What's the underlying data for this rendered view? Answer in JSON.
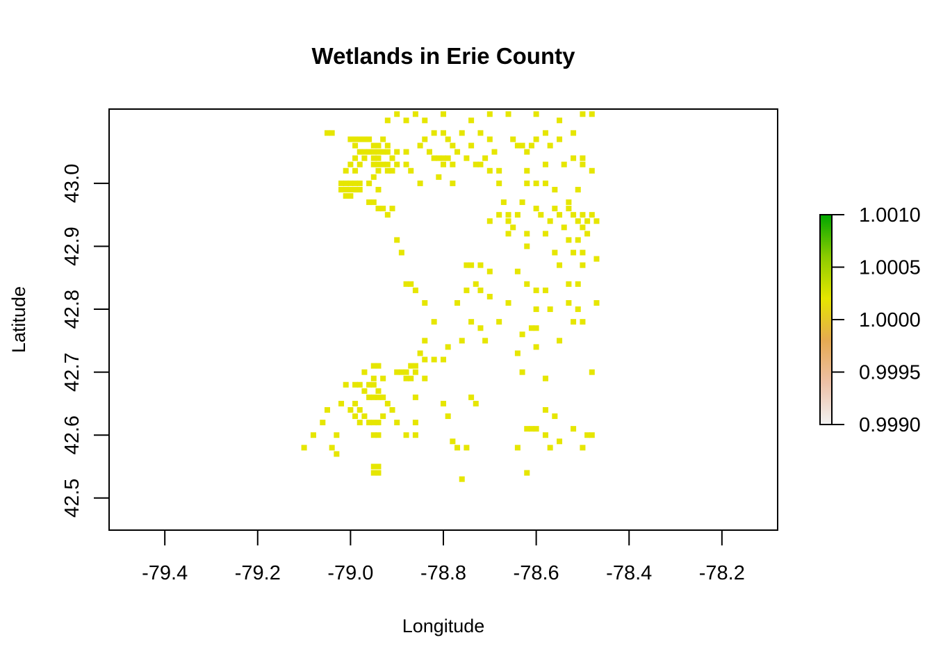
{
  "chart_data": {
    "type": "heatmap",
    "title": "Wetlands in Erie County",
    "xlabel": "Longitude",
    "ylabel": "Latitude",
    "xlim": [
      -79.52,
      -78.08
    ],
    "ylim": [
      42.449,
      43.118
    ],
    "x_ticks": [
      -79.4,
      -79.2,
      -79.0,
      -78.8,
      -78.6,
      -78.4,
      -78.2
    ],
    "x_tick_labels": [
      "-79.4",
      "-79.2",
      "-79.0",
      "-78.8",
      "-78.6",
      "-78.4",
      "-78.2"
    ],
    "y_ticks": [
      42.5,
      42.6,
      42.7,
      42.8,
      42.9,
      43.0
    ],
    "y_tick_labels": [
      "42.5",
      "42.6",
      "42.7",
      "42.8",
      "42.9",
      "43.0"
    ],
    "grid": false,
    "legend": {
      "placement": "right",
      "type": "colorbar",
      "range": [
        0.999,
        1.001
      ],
      "ticks": [
        0.999,
        0.9995,
        1.0,
        1.0005,
        1.001
      ],
      "tick_labels": [
        "0.9990",
        "0.9995",
        "1.0000",
        "1.0005",
        "1.0010"
      ],
      "colors": [
        "#f2f2f2",
        "#eec0a6",
        "#e6aa52",
        "#e6e600",
        "#8ccc00",
        "#00a600"
      ]
    },
    "cell_value": 1.0,
    "cell_color": "#e6e600",
    "cell_size_deg": [
      0.012,
      0.00885
    ],
    "cells": [
      [
        -79.05,
        43.08
      ],
      [
        -79.04,
        43.08
      ],
      [
        -78.92,
        43.1
      ],
      [
        -78.9,
        43.11
      ],
      [
        -78.88,
        43.1
      ],
      [
        -78.86,
        43.11
      ],
      [
        -78.84,
        43.1
      ],
      [
        -78.8,
        43.11
      ],
      [
        -78.74,
        43.1
      ],
      [
        -78.7,
        43.11
      ],
      [
        -78.66,
        43.11
      ],
      [
        -78.6,
        43.11
      ],
      [
        -78.55,
        43.1
      ],
      [
        -78.5,
        43.11
      ],
      [
        -78.48,
        43.11
      ],
      [
        -79.0,
        43.07
      ],
      [
        -78.99,
        43.07
      ],
      [
        -78.98,
        43.07
      ],
      [
        -78.97,
        43.07
      ],
      [
        -78.96,
        43.07
      ],
      [
        -78.95,
        43.06
      ],
      [
        -78.94,
        43.06
      ],
      [
        -78.93,
        43.07
      ],
      [
        -78.92,
        43.06
      ],
      [
        -78.99,
        43.06
      ],
      [
        -78.98,
        43.05
      ],
      [
        -78.97,
        43.05
      ],
      [
        -78.96,
        43.05
      ],
      [
        -78.95,
        43.05
      ],
      [
        -78.94,
        43.05
      ],
      [
        -78.93,
        43.05
      ],
      [
        -78.92,
        43.05
      ],
      [
        -78.99,
        43.04
      ],
      [
        -78.97,
        43.04
      ],
      [
        -78.95,
        43.04
      ],
      [
        -78.94,
        43.04
      ],
      [
        -78.91,
        43.04
      ],
      [
        -78.9,
        43.05
      ],
      [
        -78.88,
        43.05
      ],
      [
        -79.0,
        43.03
      ],
      [
        -78.98,
        43.03
      ],
      [
        -78.95,
        43.03
      ],
      [
        -78.94,
        43.03
      ],
      [
        -78.93,
        43.03
      ],
      [
        -78.92,
        43.03
      ],
      [
        -78.9,
        43.03
      ],
      [
        -79.01,
        43.02
      ],
      [
        -78.99,
        43.02
      ],
      [
        -78.94,
        43.02
      ],
      [
        -78.92,
        43.02
      ],
      [
        -78.91,
        43.02
      ],
      [
        -78.88,
        43.03
      ],
      [
        -78.87,
        43.02
      ],
      [
        -78.85,
        43.06
      ],
      [
        -78.84,
        43.07
      ],
      [
        -78.82,
        43.08
      ],
      [
        -78.8,
        43.08
      ],
      [
        -78.79,
        43.07
      ],
      [
        -78.78,
        43.06
      ],
      [
        -78.76,
        43.08
      ],
      [
        -78.74,
        43.06
      ],
      [
        -78.72,
        43.08
      ],
      [
        -78.7,
        43.07
      ],
      [
        -78.69,
        43.05
      ],
      [
        -78.71,
        43.04
      ],
      [
        -78.83,
        43.05
      ],
      [
        -78.82,
        43.04
      ],
      [
        -78.81,
        43.04
      ],
      [
        -78.8,
        43.04
      ],
      [
        -78.79,
        43.04
      ],
      [
        -78.78,
        43.03
      ],
      [
        -78.8,
        43.03
      ],
      [
        -78.77,
        43.05
      ],
      [
        -78.75,
        43.04
      ],
      [
        -78.73,
        43.03
      ],
      [
        -78.72,
        43.03
      ],
      [
        -78.7,
        43.02
      ],
      [
        -78.65,
        43.07
      ],
      [
        -78.64,
        43.06
      ],
      [
        -78.63,
        43.06
      ],
      [
        -78.62,
        43.05
      ],
      [
        -78.61,
        43.06
      ],
      [
        -78.6,
        43.07
      ],
      [
        -78.58,
        43.08
      ],
      [
        -78.57,
        43.06
      ],
      [
        -78.55,
        43.07
      ],
      [
        -78.52,
        43.08
      ],
      [
        -78.5,
        43.04
      ],
      [
        -78.68,
        43.02
      ],
      [
        -78.62,
        43.02
      ],
      [
        -78.58,
        43.03
      ],
      [
        -78.54,
        43.03
      ],
      [
        -78.52,
        43.04
      ],
      [
        -78.5,
        43.03
      ],
      [
        -78.48,
        43.02
      ],
      [
        -79.02,
        43.0
      ],
      [
        -79.01,
        43.0
      ],
      [
        -79.0,
        43.0
      ],
      [
        -78.99,
        43.0
      ],
      [
        -78.98,
        43.0
      ],
      [
        -79.02,
        42.99
      ],
      [
        -79.01,
        42.99
      ],
      [
        -79.0,
        42.99
      ],
      [
        -78.99,
        42.99
      ],
      [
        -78.98,
        42.99
      ],
      [
        -79.01,
        42.98
      ],
      [
        -79.0,
        42.98
      ],
      [
        -78.96,
        43.0
      ],
      [
        -78.95,
        43.01
      ],
      [
        -78.94,
        42.99
      ],
      [
        -78.96,
        42.97
      ],
      [
        -78.95,
        42.97
      ],
      [
        -78.94,
        42.96
      ],
      [
        -78.93,
        42.96
      ],
      [
        -78.91,
        42.96
      ],
      [
        -78.92,
        42.95
      ],
      [
        -78.85,
        43.0
      ],
      [
        -78.81,
        43.01
      ],
      [
        -78.78,
        43.0
      ],
      [
        -78.68,
        43.0
      ],
      [
        -78.62,
        43.0
      ],
      [
        -78.6,
        43.0
      ],
      [
        -78.58,
        43.0
      ],
      [
        -78.56,
        42.99
      ],
      [
        -78.53,
        42.97
      ],
      [
        -78.51,
        42.99
      ],
      [
        -78.67,
        42.97
      ],
      [
        -78.66,
        42.95
      ],
      [
        -78.65,
        42.93
      ],
      [
        -78.64,
        42.95
      ],
      [
        -78.66,
        42.94
      ],
      [
        -78.63,
        42.97
      ],
      [
        -78.6,
        42.96
      ],
      [
        -78.59,
        42.95
      ],
      [
        -78.57,
        42.94
      ],
      [
        -78.56,
        42.96
      ],
      [
        -78.55,
        42.95
      ],
      [
        -78.53,
        42.96
      ],
      [
        -78.52,
        42.95
      ],
      [
        -78.51,
        42.94
      ],
      [
        -78.5,
        42.95
      ],
      [
        -78.5,
        42.93
      ],
      [
        -78.49,
        42.94
      ],
      [
        -78.48,
        42.95
      ],
      [
        -78.47,
        42.94
      ],
      [
        -78.66,
        42.92
      ],
      [
        -78.62,
        42.92
      ],
      [
        -78.58,
        42.92
      ],
      [
        -78.54,
        42.93
      ],
      [
        -78.53,
        42.91
      ],
      [
        -78.51,
        42.91
      ],
      [
        -78.49,
        42.92
      ],
      [
        -78.68,
        42.95
      ],
      [
        -78.7,
        42.94
      ],
      [
        -78.9,
        42.91
      ],
      [
        -78.89,
        42.89
      ],
      [
        -78.62,
        42.9
      ],
      [
        -78.56,
        42.89
      ],
      [
        -78.52,
        42.89
      ],
      [
        -78.5,
        42.89
      ],
      [
        -78.75,
        42.87
      ],
      [
        -78.74,
        42.87
      ],
      [
        -78.72,
        42.87
      ],
      [
        -78.7,
        42.86
      ],
      [
        -78.64,
        42.86
      ],
      [
        -78.55,
        42.87
      ],
      [
        -78.5,
        42.87
      ],
      [
        -78.47,
        42.88
      ],
      [
        -78.88,
        42.84
      ],
      [
        -78.87,
        42.84
      ],
      [
        -78.86,
        42.83
      ],
      [
        -78.75,
        42.83
      ],
      [
        -78.73,
        42.84
      ],
      [
        -78.72,
        42.83
      ],
      [
        -78.7,
        42.82
      ],
      [
        -78.62,
        42.84
      ],
      [
        -78.6,
        42.83
      ],
      [
        -78.58,
        42.83
      ],
      [
        -78.53,
        42.84
      ],
      [
        -78.51,
        42.84
      ],
      [
        -78.84,
        42.81
      ],
      [
        -78.77,
        42.81
      ],
      [
        -78.66,
        42.81
      ],
      [
        -78.6,
        42.8
      ],
      [
        -78.57,
        42.8
      ],
      [
        -78.53,
        42.81
      ],
      [
        -78.51,
        42.8
      ],
      [
        -78.47,
        42.81
      ],
      [
        -78.82,
        42.78
      ],
      [
        -78.74,
        42.78
      ],
      [
        -78.72,
        42.77
      ],
      [
        -78.68,
        42.78
      ],
      [
        -78.63,
        42.76
      ],
      [
        -78.61,
        42.77
      ],
      [
        -78.6,
        42.77
      ],
      [
        -78.52,
        42.78
      ],
      [
        -78.5,
        42.78
      ],
      [
        -78.84,
        42.75
      ],
      [
        -78.79,
        42.74
      ],
      [
        -78.76,
        42.75
      ],
      [
        -78.71,
        42.75
      ],
      [
        -78.64,
        42.73
      ],
      [
        -78.6,
        42.74
      ],
      [
        -78.55,
        42.75
      ],
      [
        -78.85,
        42.73
      ],
      [
        -78.86,
        42.71
      ],
      [
        -78.84,
        42.72
      ],
      [
        -78.87,
        42.71
      ],
      [
        -78.9,
        42.7
      ],
      [
        -78.89,
        42.7
      ],
      [
        -78.88,
        42.7
      ],
      [
        -78.86,
        42.7
      ],
      [
        -78.88,
        42.69
      ],
      [
        -78.87,
        42.69
      ],
      [
        -78.84,
        42.69
      ],
      [
        -78.95,
        42.71
      ],
      [
        -78.94,
        42.71
      ],
      [
        -78.97,
        42.7
      ],
      [
        -78.95,
        42.69
      ],
      [
        -78.93,
        42.69
      ],
      [
        -78.96,
        42.68
      ],
      [
        -78.95,
        42.68
      ],
      [
        -78.94,
        42.67
      ],
      [
        -78.82,
        42.72
      ],
      [
        -78.8,
        42.72
      ],
      [
        -78.63,
        42.7
      ],
      [
        -78.48,
        42.7
      ],
      [
        -78.58,
        42.69
      ],
      [
        -79.01,
        42.68
      ],
      [
        -78.99,
        42.68
      ],
      [
        -78.98,
        42.68
      ],
      [
        -78.97,
        42.67
      ],
      [
        -78.96,
        42.66
      ],
      [
        -78.95,
        42.66
      ],
      [
        -78.94,
        42.66
      ],
      [
        -78.93,
        42.66
      ],
      [
        -79.02,
        42.65
      ],
      [
        -79.0,
        42.64
      ],
      [
        -78.99,
        42.65
      ],
      [
        -78.98,
        42.64
      ],
      [
        -78.97,
        42.63
      ],
      [
        -78.92,
        42.65
      ],
      [
        -78.91,
        42.64
      ],
      [
        -78.86,
        42.66
      ],
      [
        -78.8,
        42.65
      ],
      [
        -78.74,
        42.66
      ],
      [
        -78.73,
        42.65
      ],
      [
        -79.05,
        42.64
      ],
      [
        -79.06,
        42.62
      ],
      [
        -78.99,
        42.63
      ],
      [
        -78.98,
        42.62
      ],
      [
        -78.96,
        42.62
      ],
      [
        -78.95,
        42.62
      ],
      [
        -78.94,
        42.62
      ],
      [
        -78.93,
        42.63
      ],
      [
        -78.9,
        42.62
      ],
      [
        -78.86,
        42.62
      ],
      [
        -78.79,
        42.63
      ],
      [
        -78.58,
        42.64
      ],
      [
        -78.56,
        42.63
      ],
      [
        -79.08,
        42.6
      ],
      [
        -79.03,
        42.6
      ],
      [
        -78.95,
        42.6
      ],
      [
        -78.94,
        42.6
      ],
      [
        -78.88,
        42.6
      ],
      [
        -78.86,
        42.6
      ],
      [
        -78.78,
        42.59
      ],
      [
        -78.62,
        42.61
      ],
      [
        -78.61,
        42.61
      ],
      [
        -78.6,
        42.61
      ],
      [
        -78.58,
        42.6
      ],
      [
        -78.52,
        42.61
      ],
      [
        -78.49,
        42.6
      ],
      [
        -78.48,
        42.6
      ],
      [
        -79.1,
        42.58
      ],
      [
        -79.04,
        42.58
      ],
      [
        -79.03,
        42.57
      ],
      [
        -78.77,
        42.58
      ],
      [
        -78.75,
        42.58
      ],
      [
        -78.64,
        42.58
      ],
      [
        -78.57,
        42.58
      ],
      [
        -78.55,
        42.59
      ],
      [
        -78.5,
        42.58
      ],
      [
        -78.95,
        42.54
      ],
      [
        -78.94,
        42.54
      ],
      [
        -78.95,
        42.55
      ],
      [
        -78.94,
        42.55
      ],
      [
        -78.76,
        42.53
      ],
      [
        -78.62,
        42.54
      ]
    ]
  }
}
